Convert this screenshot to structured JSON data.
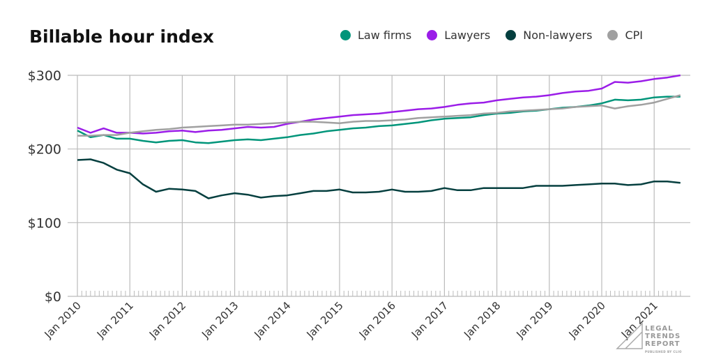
{
  "chart_data": {
    "type": "line",
    "title": "Billable hour index",
    "xlabel": "",
    "ylabel": "",
    "ylim": [
      0,
      300
    ],
    "yticks": [
      "$0",
      "$100",
      "$200",
      "$300"
    ],
    "ytick_values": [
      0,
      100,
      200,
      300
    ],
    "xticks": [
      "Jan 2010",
      "Jan 2011",
      "Jan 2012",
      "Jan 2013",
      "Jan 2014",
      "Jan 2015",
      "Jan 2016",
      "Jan 2017",
      "Jan 2018",
      "Jan 2019",
      "Jan 2020",
      "Jan 2021"
    ],
    "grid": true,
    "legend": "top-right",
    "x": [
      "2010-01",
      "2010-04",
      "2010-07",
      "2010-10",
      "2011-01",
      "2011-04",
      "2011-07",
      "2011-10",
      "2012-01",
      "2012-04",
      "2012-07",
      "2012-10",
      "2013-01",
      "2013-04",
      "2013-07",
      "2013-10",
      "2014-01",
      "2014-04",
      "2014-07",
      "2014-10",
      "2015-01",
      "2015-04",
      "2015-07",
      "2015-10",
      "2016-01",
      "2016-04",
      "2016-07",
      "2016-10",
      "2017-01",
      "2017-04",
      "2017-07",
      "2017-10",
      "2018-01",
      "2018-04",
      "2018-07",
      "2018-10",
      "2019-01",
      "2019-04",
      "2019-07",
      "2019-10",
      "2020-01",
      "2020-04",
      "2020-07",
      "2020-10",
      "2021-01",
      "2021-04",
      "2021-07"
    ],
    "series": [
      {
        "name": "Law firms",
        "color": "#00957a",
        "values": [
          225,
          216,
          219,
          214,
          214,
          211,
          209,
          211,
          212,
          209,
          208,
          210,
          212,
          213,
          212,
          214,
          216,
          219,
          221,
          224,
          226,
          228,
          229,
          231,
          232,
          234,
          236,
          239,
          241,
          242,
          243,
          246,
          248,
          249,
          251,
          252,
          254,
          256,
          257,
          259,
          262,
          267,
          266,
          267,
          270,
          271,
          271
        ]
      },
      {
        "name": "Lawyers",
        "color": "#9b1de8",
        "values": [
          229,
          222,
          228,
          222,
          222,
          221,
          222,
          224,
          225,
          223,
          225,
          226,
          228,
          230,
          229,
          230,
          234,
          237,
          240,
          242,
          244,
          246,
          247,
          248,
          250,
          252,
          254,
          255,
          257,
          260,
          262,
          263,
          266,
          268,
          270,
          271,
          273,
          276,
          278,
          279,
          282,
          291,
          290,
          292,
          295,
          297,
          300
        ]
      },
      {
        "name": "Non-lawyers",
        "color": "#053f3f",
        "values": [
          185,
          186,
          181,
          172,
          167,
          152,
          142,
          146,
          145,
          143,
          133,
          137,
          140,
          138,
          134,
          136,
          137,
          140,
          143,
          143,
          145,
          141,
          141,
          142,
          145,
          142,
          142,
          143,
          147,
          144,
          144,
          147,
          147,
          147,
          147,
          150,
          150,
          150,
          151,
          152,
          153,
          153,
          151,
          152,
          156,
          156,
          154
        ]
      },
      {
        "name": "CPI",
        "color": "#a0a0a0",
        "values": [
          218,
          218,
          219,
          219,
          222,
          224,
          226,
          227,
          229,
          230,
          231,
          232,
          233,
          233,
          234,
          235,
          236,
          237,
          237,
          236,
          235,
          237,
          238,
          238,
          239,
          240,
          242,
          243,
          244,
          245,
          246,
          248,
          249,
          251,
          252,
          253,
          254,
          255,
          257,
          258,
          259,
          255,
          258,
          260,
          263,
          268,
          273
        ]
      }
    ]
  },
  "logo": {
    "line1": "LEGAL",
    "line2": "TRENDS",
    "line3": "REPORT",
    "sub": "PUBLISHED BY CLIO"
  }
}
